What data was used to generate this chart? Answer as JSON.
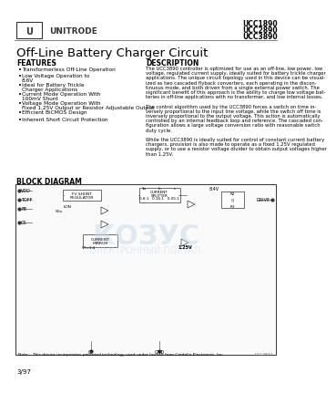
{
  "title": "Off-Line Battery Charger Circuit",
  "part_numbers": [
    "UCC1890",
    "UCC2890",
    "UCC3890"
  ],
  "features_title": "FEATURES",
  "features": [
    "Transformerless Off-Line Operation",
    "Low Voltage Operation to 8.6V",
    "Ideal for Battery Trickle Charger Applications",
    "Current Mode Operation With 100mV Shunt",
    "Voltage Mode Operation With Fixed 1.25V Output or Resistor Adjustable Output",
    "Efficient BiCMOS Design",
    "Inherent Short Circuit Protection"
  ],
  "description_title": "DESCRIPTION",
  "description": "The UCC3890 controller is optimized for use as an off-line, low power, low voltage, regulated current supply, ideally suited for battery trickle charger applications. The unique circuit topology used in this device can be visualized as two cascaded flyback converters, each operating in the discontinuous mode, and both driven from a single external power switch. The significant benefit of this approach is the ability to charge low voltage batteries in off-line applications with no transformer, and low internal losses.\n\nThe control algorithm used by the UCC3890 forces a switch on time inversely proportional to the input line voltage, while the switch off time is inversely proportional to the output voltage. This action is automatically controlled by an internal feedback loop and reference. The cascaded configuration allows a large voltage conversion ratio with reasonable switch duty cycle.\n\nWhile the UCC3890 is ideally suited for control of constant current battery chargers, provision is also made to operate as a fixed 1.25V regulated supply, or to use a resistor voltage divider to obtain output voltages higher than 1.25V.",
  "block_diagram_title": "BLOCK DIAGRAM",
  "footer_note": "Note:   This device incorporates patented technology used under license from Cardalio Electronics, Inc.",
  "footer_id": "UCC-8613",
  "date": "3/97",
  "bg_color": "#ffffff",
  "text_color": "#000000",
  "diagram_bg": "#f5f5f5"
}
